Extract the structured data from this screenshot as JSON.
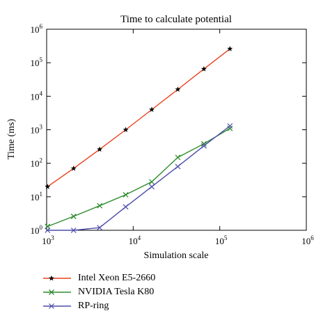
{
  "chart_data": {
    "type": "line",
    "title": "Time to calculate potential",
    "xlabel": "Simulation scale",
    "ylabel": "Time (ms)",
    "xscale": "log",
    "yscale": "log",
    "xlim": [
      1000,
      1000000
    ],
    "ylim": [
      1,
      1000000
    ],
    "xticks": [
      {
        "value": 1000,
        "base": "10",
        "exp": "3"
      },
      {
        "value": 10000,
        "base": "10",
        "exp": "4"
      },
      {
        "value": 100000,
        "base": "10",
        "exp": "5"
      },
      {
        "value": 1000000,
        "base": "10",
        "exp": "6"
      }
    ],
    "yticks": [
      {
        "value": 1,
        "base": "10",
        "exp": "0"
      },
      {
        "value": 10,
        "base": "10",
        "exp": "1"
      },
      {
        "value": 100,
        "base": "10",
        "exp": "2"
      },
      {
        "value": 1000,
        "base": "10",
        "exp": "3"
      },
      {
        "value": 10000,
        "base": "10",
        "exp": "4"
      },
      {
        "value": 100000,
        "base": "10",
        "exp": "5"
      },
      {
        "value": 1000000,
        "base": "10",
        "exp": "6"
      }
    ],
    "grid": false,
    "legend_position": "bottom",
    "series": [
      {
        "name": "Intel Xeon E5-2660",
        "color": "#e8401c",
        "marker": "star",
        "x": [
          1024,
          2048,
          4096,
          8192,
          16384,
          32768,
          65536,
          131072
        ],
        "y": [
          20,
          70,
          260,
          1000,
          4000,
          16000,
          65000,
          260000
        ]
      },
      {
        "name": "NVIDIA Tesla K80",
        "color": "#2e8b2e",
        "marker": "x",
        "x": [
          1024,
          2048,
          4096,
          8192,
          16384,
          32768,
          65536,
          131072
        ],
        "y": [
          1.3,
          2.6,
          5.4,
          11.5,
          28,
          150,
          380,
          1100
        ]
      },
      {
        "name": "RP-ring",
        "color": "#4b4baa",
        "marker": "plus",
        "x": [
          1024,
          2048,
          4096,
          8192,
          16384,
          32768,
          65536,
          131072
        ],
        "y": [
          1.0,
          1.0,
          1.2,
          5,
          20,
          80,
          330,
          1300
        ]
      }
    ]
  }
}
